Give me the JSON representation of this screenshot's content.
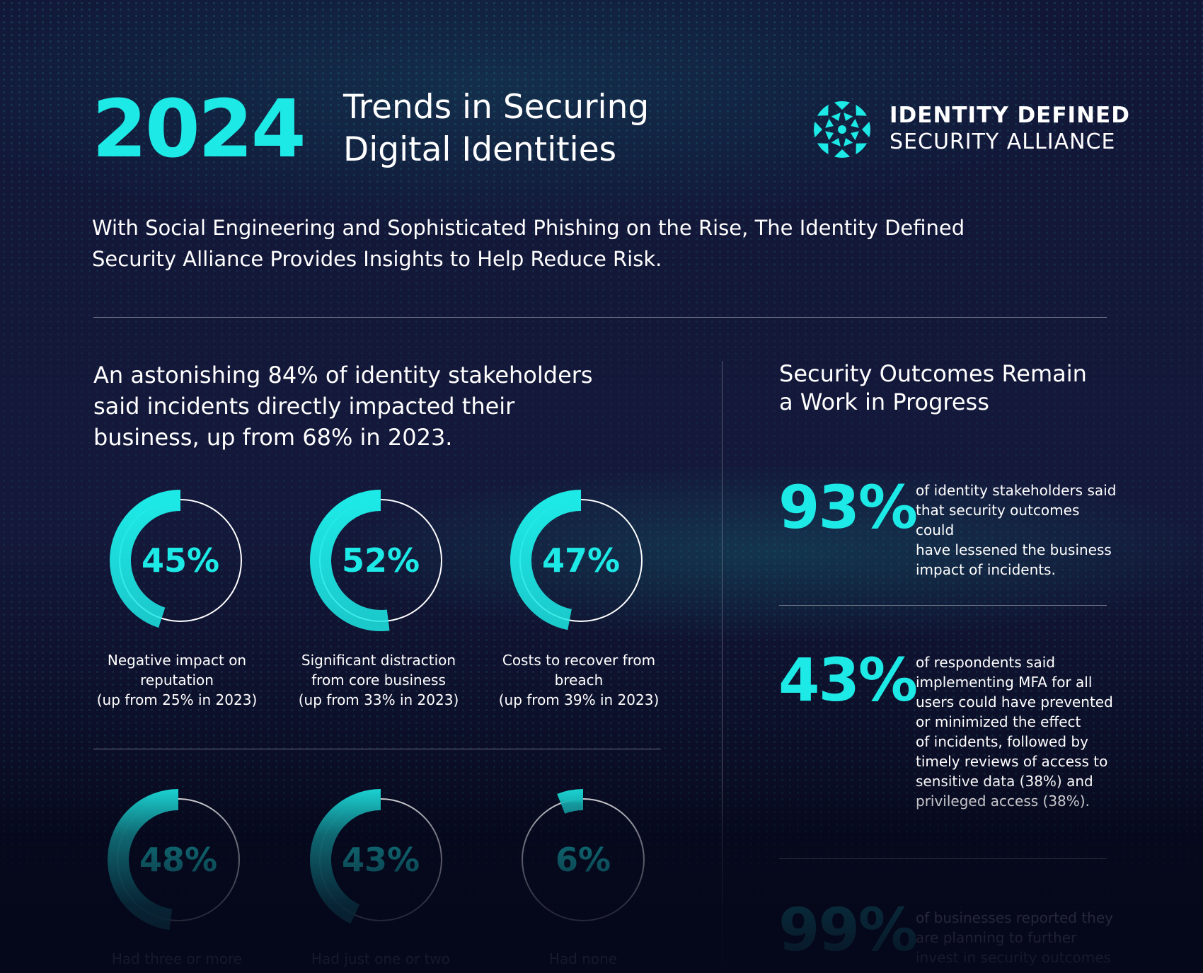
{
  "header": {
    "year": "2024",
    "title_line1": "Trends in Securing",
    "title_line2": "Digital Identities",
    "logo_line1": "IDENTITY DEFINED",
    "logo_line2": "SECURITY ALLIANCE",
    "subtitle_line1": "With Social Engineering and Sophisticated Phishing on the Rise, The Identity Defined",
    "subtitle_line2": "Security Alliance Provides Insights to Help Reduce Risk."
  },
  "accent_color": "#1de9e6",
  "left": {
    "heading_line1": "An astonishing 84% of identity stakeholders",
    "heading_line2": "said incidents directly impacted their",
    "heading_line3": "business, up from 68% in 2023.",
    "donuts_top": [
      {
        "value": 45,
        "label": "45%",
        "caption1": "Negative impact on",
        "caption2": "reputation",
        "caption3": "(up from 25% in 2023)"
      },
      {
        "value": 52,
        "label": "52%",
        "caption1": "Significant distraction",
        "caption2": "from core business",
        "caption3": "(up from 33% in 2023)"
      },
      {
        "value": 47,
        "label": "47%",
        "caption1": "Costs to recover from",
        "caption2": "breach",
        "caption3": "(up from 39% in 2023)"
      }
    ],
    "donuts_bottom": [
      {
        "value": 48,
        "label": "48%",
        "caption": "Had three or more"
      },
      {
        "value": 43,
        "label": "43%",
        "caption": "Had just one or two"
      },
      {
        "value": 6,
        "label": "6%",
        "caption": "Had none"
      }
    ]
  },
  "right": {
    "heading_line1": "Security Outcomes Remain",
    "heading_line2": "a Work in Progress",
    "stats": [
      {
        "pct": "93%",
        "lines": [
          "of identity stakeholders said",
          "that security outcomes could",
          "have lessened the business",
          "impact of incidents."
        ]
      },
      {
        "pct": "43%",
        "lines": [
          "of respondents said",
          "implementing MFA for all",
          "users could have prevented",
          "or minimized the effect",
          "of incidents, followed by",
          "timely reviews of access to",
          "sensitive data (38%) and",
          "privileged access (38%)."
        ]
      },
      {
        "pct": "99%",
        "lines": [
          "of businesses reported they",
          "are planning to further",
          "invest in security outcomes"
        ]
      }
    ]
  }
}
